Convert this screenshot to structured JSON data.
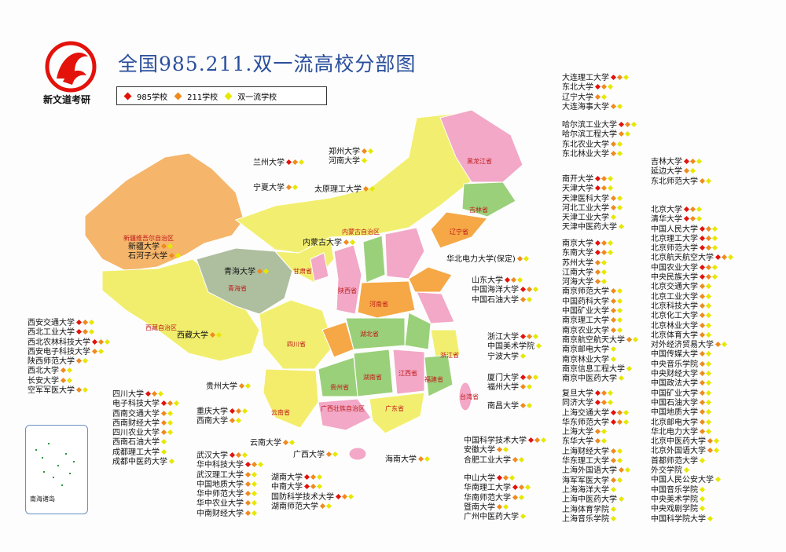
{
  "header": {
    "logo": "新文道考研",
    "title": "全国985.211.双一流高校分部图"
  },
  "legend": [
    {
      "label": "985学校",
      "color": "#e3120b"
    },
    {
      "label": "211学校",
      "color": "#f08a1c"
    },
    {
      "label": "双一流学校",
      "color": "#e6e800"
    }
  ],
  "inset": {
    "label": "南海诸岛"
  },
  "provinces": [
    {
      "label": "新疆维吾尔自治区"
    },
    {
      "label": "西藏自治区"
    },
    {
      "label": "青海省"
    },
    {
      "label": "四川省"
    },
    {
      "label": "内蒙古自治区"
    },
    {
      "label": "黑龙江省"
    },
    {
      "label": "吉林省"
    },
    {
      "label": "辽宁省"
    },
    {
      "label": "甘肃省"
    },
    {
      "label": "陕西省"
    },
    {
      "label": "河南省"
    },
    {
      "label": "湖北省"
    },
    {
      "label": "湖南省"
    },
    {
      "label": "江西省"
    },
    {
      "label": "福建省"
    },
    {
      "label": "广东省"
    },
    {
      "label": "广西壮族自治区"
    },
    {
      "label": "云南省"
    },
    {
      "label": "贵州省"
    },
    {
      "label": "浙江省"
    },
    {
      "label": "台湾省"
    }
  ],
  "groups": [
    {
      "items": [
        {
          "name": "大连理工大学",
          "levels": [
            0,
            1,
            2
          ]
        },
        {
          "name": "东北大学",
          "levels": [
            0,
            1,
            2
          ]
        },
        {
          "name": "辽宁大学",
          "levels": [
            1,
            2
          ]
        },
        {
          "name": "大连海事大学",
          "levels": [
            1,
            2
          ]
        }
      ]
    },
    {
      "items": [
        {
          "name": "哈尔滨工业大学",
          "levels": [
            0,
            1,
            2
          ]
        },
        {
          "name": "哈尔滨工程大学",
          "levels": [
            1,
            2
          ]
        },
        {
          "name": "东北农业大学",
          "levels": [
            1,
            2
          ]
        },
        {
          "name": "东北林业大学",
          "levels": [
            1,
            2
          ]
        }
      ]
    },
    {
      "items": [
        {
          "name": "吉林大学",
          "levels": [
            0,
            1,
            2
          ]
        },
        {
          "name": "延边大学",
          "levels": [
            1,
            2
          ]
        },
        {
          "name": "东北师范大学",
          "levels": [
            1,
            2
          ]
        }
      ]
    },
    {
      "items": [
        {
          "name": "南开大学",
          "levels": [
            0,
            1,
            2
          ]
        },
        {
          "name": "天津大学",
          "levels": [
            0,
            1,
            2
          ]
        },
        {
          "name": "天津医科大学",
          "levels": [
            1,
            2
          ]
        },
        {
          "name": "河北工业大学",
          "levels": [
            1,
            2
          ]
        },
        {
          "name": "天津工业大学",
          "levels": [
            2
          ]
        },
        {
          "name": "天津中医药大学",
          "levels": [
            2
          ]
        }
      ]
    },
    {
      "items": [
        {
          "name": "北京大学",
          "levels": [
            0,
            1,
            2
          ]
        },
        {
          "name": "清华大学",
          "levels": [
            0,
            1,
            2
          ]
        },
        {
          "name": "中国人民大学",
          "levels": [
            0,
            1,
            2
          ]
        },
        {
          "name": "北京理工大学",
          "levels": [
            0,
            1,
            2
          ]
        },
        {
          "name": "北京师范大学",
          "levels": [
            0,
            1,
            2
          ]
        },
        {
          "name": "北京航天航空大学",
          "levels": [
            0,
            1,
            2
          ]
        },
        {
          "name": "中国农业大学",
          "levels": [
            0,
            1,
            2
          ]
        },
        {
          "name": "中央民族大学",
          "levels": [
            0,
            1,
            2
          ]
        },
        {
          "name": "北京交通大学",
          "levels": [
            1,
            2
          ]
        },
        {
          "name": "北京工业大学",
          "levels": [
            1,
            2
          ]
        },
        {
          "name": "北京科技大学",
          "levels": [
            1,
            2
          ]
        },
        {
          "name": "北京化工大学",
          "levels": [
            1,
            2
          ]
        },
        {
          "name": "北京林业大学",
          "levels": [
            1,
            2
          ]
        },
        {
          "name": "北京体育大学",
          "levels": [
            1,
            2
          ]
        },
        {
          "name": "对外经济贸易大学",
          "levels": [
            1,
            2
          ]
        },
        {
          "name": "中国传媒大学",
          "levels": [
            1,
            2
          ]
        },
        {
          "name": "中央音乐学院",
          "levels": [
            1,
            2
          ]
        },
        {
          "name": "中央财经大学",
          "levels": [
            1,
            2
          ]
        },
        {
          "name": "中国政法大学",
          "levels": [
            1,
            2
          ]
        },
        {
          "name": "中国矿业大学",
          "levels": [
            1,
            2
          ]
        },
        {
          "name": "中国石油大学",
          "levels": [
            1,
            2
          ]
        },
        {
          "name": "中国地质大学",
          "levels": [
            1,
            2
          ]
        },
        {
          "name": "北京邮电大学",
          "levels": [
            1,
            2
          ]
        },
        {
          "name": "华北电力大学",
          "levels": [
            1,
            2
          ]
        },
        {
          "name": "北京中医药大学",
          "levels": [
            1,
            2
          ]
        },
        {
          "name": "北京外国语大学",
          "levels": [
            1,
            2
          ]
        },
        {
          "name": "首都师范大学",
          "levels": [
            2
          ]
        },
        {
          "name": "外交学院",
          "levels": [
            2
          ]
        },
        {
          "name": "中国人民公安大学",
          "levels": [
            2
          ]
        },
        {
          "name": "中国音乐学院",
          "levels": [
            2
          ]
        },
        {
          "name": "中央美术学院",
          "levels": [
            2
          ]
        },
        {
          "name": "中央戏剧学院",
          "levels": [
            2
          ]
        },
        {
          "name": "中国科学院大学",
          "levels": [
            2
          ]
        }
      ]
    },
    {
      "items": [
        {
          "name": "郑州大学",
          "levels": [
            1,
            2
          ]
        },
        {
          "name": "河南大学",
          "levels": [
            2
          ]
        }
      ]
    },
    {
      "items": [
        {
          "name": "兰州大学",
          "levels": [
            0,
            1,
            2
          ]
        }
      ]
    },
    {
      "items": [
        {
          "name": "宁夏大学",
          "levels": [
            1,
            2
          ]
        }
      ]
    },
    {
      "items": [
        {
          "name": "太原理工大学",
          "levels": [
            1,
            2
          ]
        }
      ]
    },
    {
      "items": [
        {
          "name": "内蒙古大学",
          "levels": [
            1,
            2
          ]
        }
      ]
    },
    {
      "items": [
        {
          "name": "华北电力大学(保定)",
          "levels": [
            1,
            2
          ]
        }
      ]
    },
    {
      "items": [
        {
          "name": "山东大学",
          "levels": [
            0,
            1,
            2
          ]
        },
        {
          "name": "中国海洋大学",
          "levels": [
            0,
            1,
            2
          ]
        },
        {
          "name": "中国石油大学",
          "levels": [
            1,
            2
          ]
        }
      ]
    },
    {
      "items": [
        {
          "name": "南京大学",
          "levels": [
            0,
            1,
            2
          ]
        },
        {
          "name": "东南大学",
          "levels": [
            0,
            1,
            2
          ]
        },
        {
          "name": "苏州大学",
          "levels": [
            1,
            2
          ]
        },
        {
          "name": "江南大学",
          "levels": [
            1,
            2
          ]
        },
        {
          "name": "河海大学",
          "levels": [
            1,
            2
          ]
        },
        {
          "name": "南京师范大学",
          "levels": [
            1,
            2
          ]
        },
        {
          "name": "中国药科大学",
          "levels": [
            1,
            2
          ]
        },
        {
          "name": "中国矿业大学",
          "levels": [
            1,
            2
          ]
        },
        {
          "name": "南京理工大学",
          "levels": [
            1,
            2
          ]
        },
        {
          "name": "南京农业大学",
          "levels": [
            1,
            2
          ]
        },
        {
          "name": "南京航空航天大学",
          "levels": [
            1,
            2
          ]
        },
        {
          "name": "南京邮电大学",
          "levels": [
            2
          ]
        },
        {
          "name": "南京林业大学",
          "levels": [
            2
          ]
        },
        {
          "name": "南京信息工程大学",
          "levels": [
            2
          ]
        },
        {
          "name": "南京中医药大学",
          "levels": [
            2
          ]
        }
      ]
    },
    {
      "items": [
        {
          "name": "新疆大学",
          "levels": [
            1,
            2
          ]
        },
        {
          "name": "石河子大学",
          "levels": [
            1,
            2
          ]
        }
      ]
    },
    {
      "items": [
        {
          "name": "青海大学",
          "levels": [
            1,
            2
          ]
        }
      ]
    },
    {
      "items": [
        {
          "name": "西藏大学",
          "levels": [
            1,
            2
          ]
        }
      ]
    },
    {
      "items": [
        {
          "name": "西安交通大学",
          "levels": [
            0,
            1,
            2
          ]
        },
        {
          "name": "西北工业大学",
          "levels": [
            0,
            1,
            2
          ]
        },
        {
          "name": "西北农林科技大学",
          "levels": [
            0,
            1,
            2
          ]
        },
        {
          "name": "西安电子科技大学",
          "levels": [
            1,
            2
          ]
        },
        {
          "name": "陕西师范大学",
          "levels": [
            1,
            2
          ]
        },
        {
          "name": "西北大学",
          "levels": [
            1,
            2
          ]
        },
        {
          "name": "长安大学",
          "levels": [
            1,
            2
          ]
        },
        {
          "name": "空军军医大学",
          "levels": [
            1,
            2
          ]
        }
      ]
    },
    {
      "items": [
        {
          "name": "浙江大学",
          "levels": [
            0,
            1,
            2
          ]
        },
        {
          "name": "中国美术学院",
          "levels": [
            2
          ]
        },
        {
          "name": "宁波大学",
          "levels": [
            2
          ]
        }
      ]
    },
    {
      "items": [
        {
          "name": "厦门大学",
          "levels": [
            0,
            1,
            2
          ]
        },
        {
          "name": "福州大学",
          "levels": [
            1,
            2
          ]
        }
      ]
    },
    {
      "items": [
        {
          "name": "南昌大学",
          "levels": [
            1,
            2
          ]
        }
      ]
    },
    {
      "items": [
        {
          "name": "复旦大学",
          "levels": [
            0,
            1,
            2
          ]
        },
        {
          "name": "同济大学",
          "levels": [
            0,
            1,
            2
          ]
        },
        {
          "name": "上海交通大学",
          "levels": [
            0,
            1,
            2
          ]
        },
        {
          "name": "华东师范大学",
          "levels": [
            0,
            1,
            2
          ]
        },
        {
          "name": "上海大学",
          "levels": [
            1,
            2
          ]
        },
        {
          "name": "东华大学",
          "levels": [
            1,
            2
          ]
        },
        {
          "name": "上海财经大学",
          "levels": [
            1,
            2
          ]
        },
        {
          "name": "华东理工大学",
          "levels": [
            1,
            2
          ]
        },
        {
          "name": "上海外国语大学",
          "levels": [
            1,
            2
          ]
        },
        {
          "name": "海军军医大学",
          "levels": [
            1,
            2
          ]
        },
        {
          "name": "上海海洋大学",
          "levels": [
            2
          ]
        },
        {
          "name": "上海中医药大学",
          "levels": [
            2
          ]
        },
        {
          "name": "上海体育学院",
          "levels": [
            2
          ]
        },
        {
          "name": "上海音乐学院",
          "levels": [
            2
          ]
        }
      ]
    },
    {
      "items": [
        {
          "name": "贵州大学",
          "levels": [
            1,
            2
          ]
        }
      ]
    },
    {
      "items": [
        {
          "name": "四川大学",
          "levels": [
            0,
            1,
            2
          ]
        },
        {
          "name": "电子科技大学",
          "levels": [
            0,
            1,
            2
          ]
        },
        {
          "name": "西南交通大学",
          "levels": [
            1,
            2
          ]
        },
        {
          "name": "西南财经大学",
          "levels": [
            1,
            2
          ]
        },
        {
          "name": "四川农业大学",
          "levels": [
            1,
            2
          ]
        },
        {
          "name": "西南石油大学",
          "levels": [
            2
          ]
        },
        {
          "name": "成都理工大学",
          "levels": [
            2
          ]
        },
        {
          "name": "成都中医药大学",
          "levels": [
            2
          ]
        }
      ]
    },
    {
      "items": [
        {
          "name": "重庆大学",
          "levels": [
            0,
            1,
            2
          ]
        },
        {
          "name": "西南大学",
          "levels": [
            1,
            2
          ]
        }
      ]
    },
    {
      "items": [
        {
          "name": "云南大学",
          "levels": [
            1,
            2
          ]
        }
      ]
    },
    {
      "items": [
        {
          "name": "广西大学",
          "levels": [
            1,
            2
          ]
        }
      ]
    },
    {
      "items": [
        {
          "name": "海南大学",
          "levels": [
            1,
            2
          ]
        }
      ]
    },
    {
      "items": [
        {
          "name": "中国科学技术大学",
          "levels": [
            0,
            1,
            2
          ]
        },
        {
          "name": "安徽大学",
          "levels": [
            1,
            2
          ]
        },
        {
          "name": "合肥工业大学",
          "levels": [
            1,
            2
          ]
        }
      ]
    },
    {
      "items": [
        {
          "name": "武汉大学",
          "levels": [
            0,
            1,
            2
          ]
        },
        {
          "name": "华中科技大学",
          "levels": [
            0,
            1,
            2
          ]
        },
        {
          "name": "武汉理工大学",
          "levels": [
            1,
            2
          ]
        },
        {
          "name": "中国地质大学",
          "levels": [
            1,
            2
          ]
        },
        {
          "name": "华中师范大学",
          "levels": [
            1,
            2
          ]
        },
        {
          "name": "华中农业大学",
          "levels": [
            1,
            2
          ]
        },
        {
          "name": "中南财经大学",
          "levels": [
            1,
            2
          ]
        }
      ]
    },
    {
      "items": [
        {
          "name": "湖南大学",
          "levels": [
            0,
            1,
            2
          ]
        },
        {
          "name": "中南大学",
          "levels": [
            0,
            1,
            2
          ]
        },
        {
          "name": "国防科学技术大学",
          "levels": [
            0,
            1,
            2
          ]
        },
        {
          "name": "湖南师范大学",
          "levels": [
            1,
            2
          ]
        }
      ]
    },
    {
      "items": [
        {
          "name": "中山大学",
          "levels": [
            0,
            1,
            2
          ]
        },
        {
          "name": "华南理工大学",
          "levels": [
            0,
            1,
            2
          ]
        },
        {
          "name": "华南师范大学",
          "levels": [
            1,
            2
          ]
        },
        {
          "name": "暨南大学",
          "levels": [
            1,
            2
          ]
        },
        {
          "name": "广州中医药大学",
          "levels": [
            2
          ]
        }
      ]
    }
  ]
}
